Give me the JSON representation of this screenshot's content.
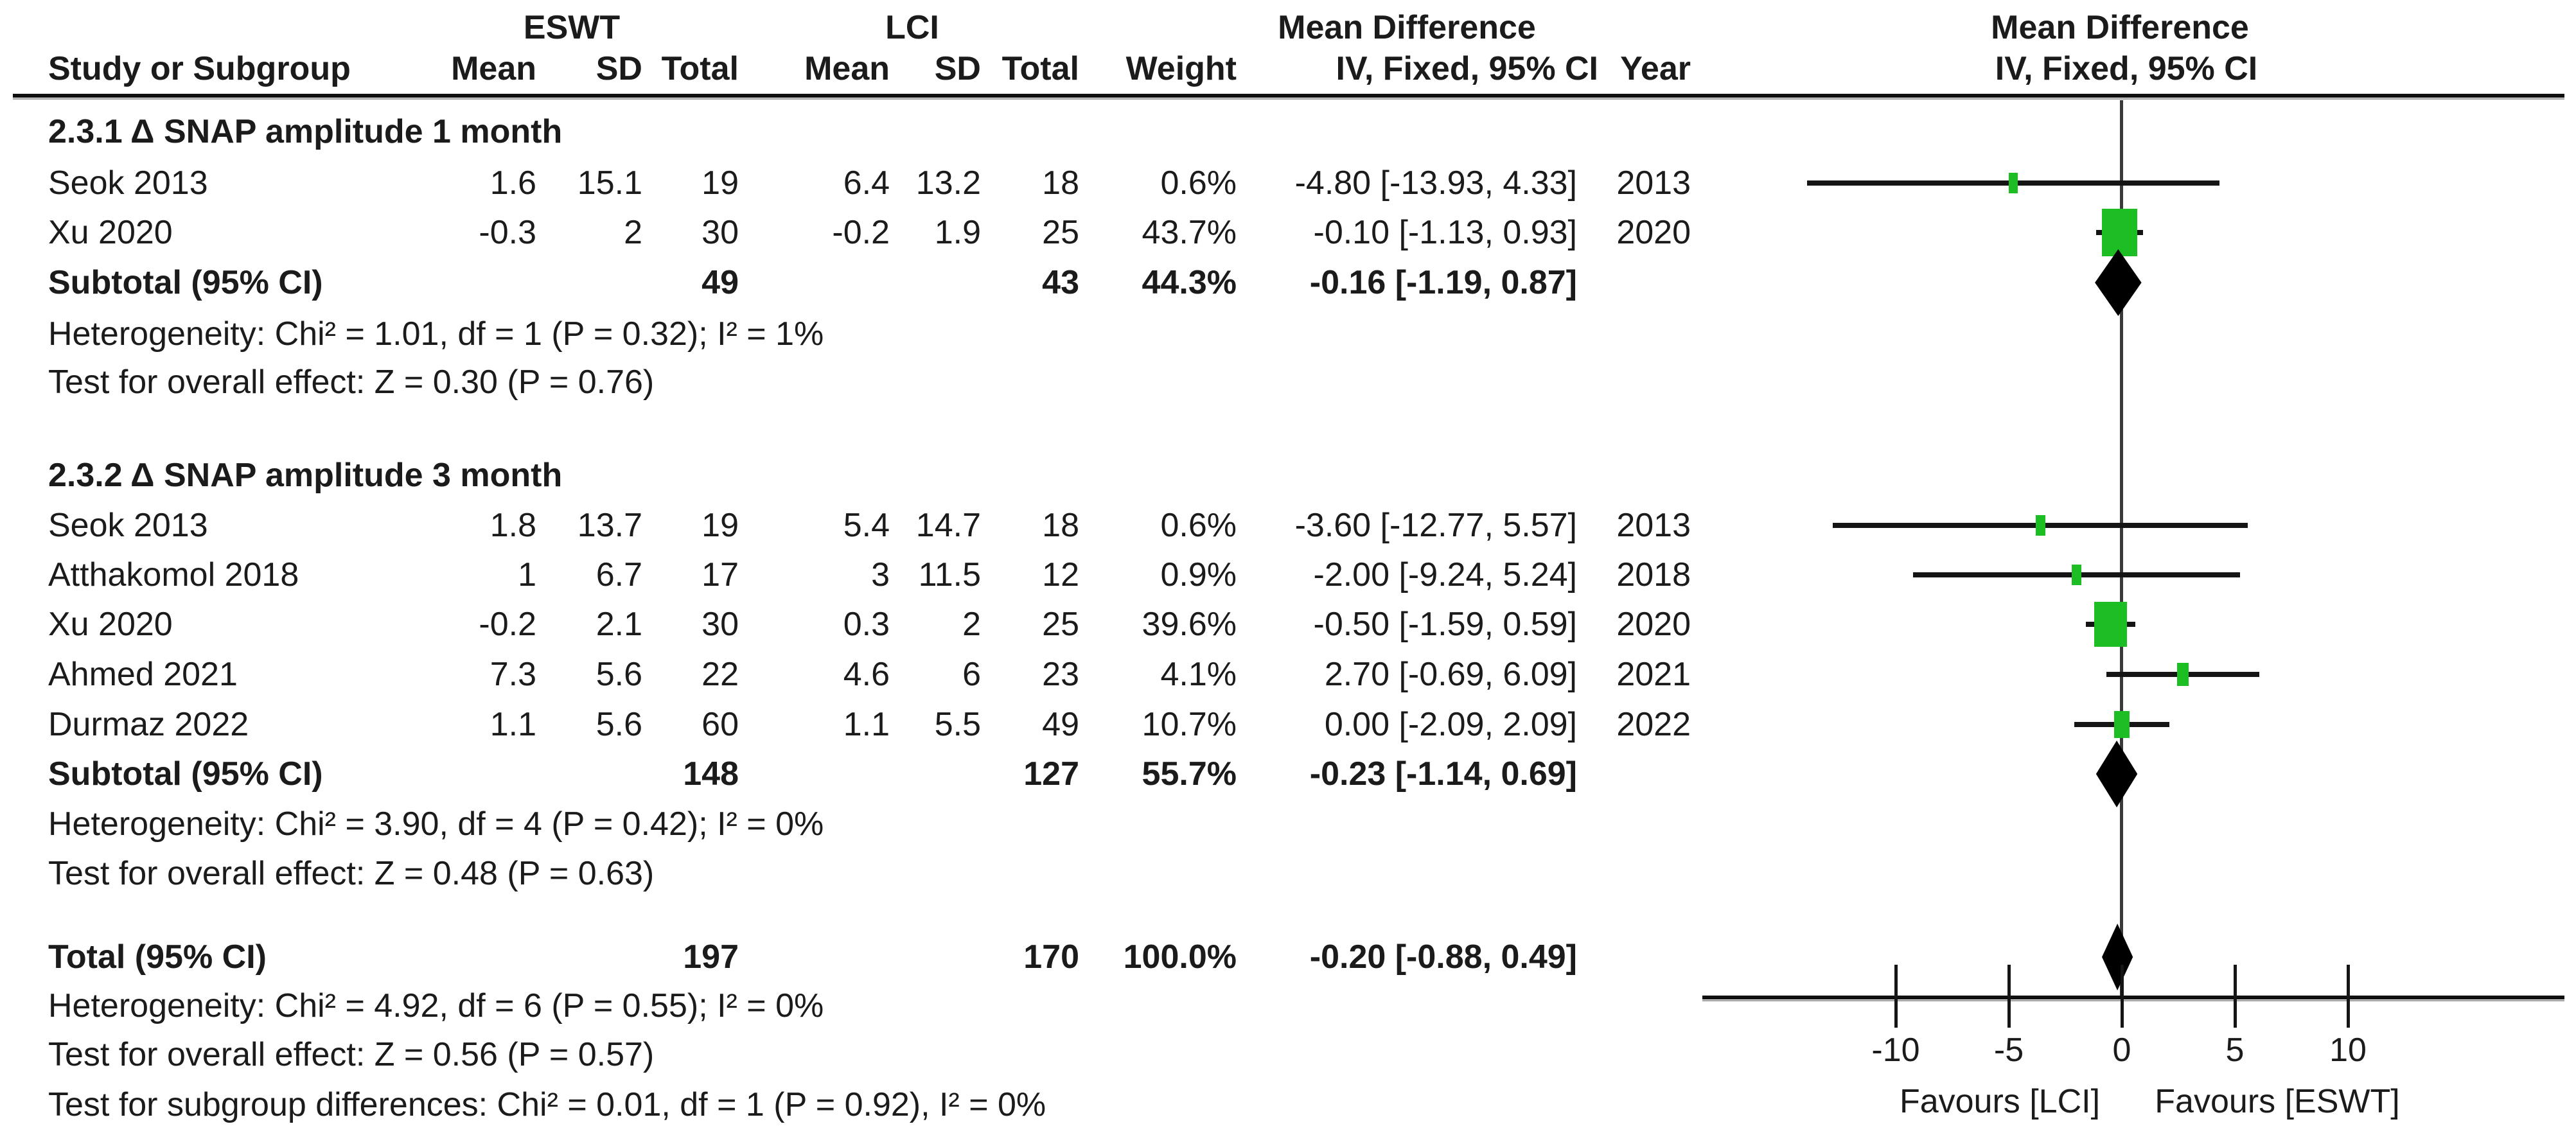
{
  "header": {
    "eswt": "ESWT",
    "lci": "LCI",
    "md_table": "Mean Difference",
    "md_plot": "Mean Difference",
    "col_study": "Study or Subgroup",
    "col_mean": "Mean",
    "col_sd": "SD",
    "col_total": "Total",
    "col_weight": "Weight",
    "col_iv_table": "IV, Fixed, 95% CI",
    "col_year": "Year",
    "col_iv_plot": "IV, Fixed, 95% CI"
  },
  "groups": [
    {
      "heading": "2.3.1 Δ SNAP amplitude 1 month",
      "studies": [
        {
          "label": "Seok 2013",
          "mean1": "1.6",
          "sd1": "15.1",
          "total1": "19",
          "mean2": "6.4",
          "sd2": "13.2",
          "total2": "18",
          "weight": "0.6%",
          "ci_text": "-4.80 [-13.93, 4.33]",
          "year": "2013",
          "est": -4.8,
          "lo": -13.93,
          "hi": 4.33,
          "weight_pct": 0.6
        },
        {
          "label": "Xu 2020",
          "mean1": "-0.3",
          "sd1": "2",
          "total1": "30",
          "mean2": "-0.2",
          "sd2": "1.9",
          "total2": "25",
          "weight": "43.7%",
          "ci_text": "-0.10 [-1.13, 0.93]",
          "year": "2020",
          "est": -0.1,
          "lo": -1.13,
          "hi": 0.93,
          "weight_pct": 43.7
        }
      ],
      "subtotal": {
        "label": "Subtotal (95% CI)",
        "total1": "49",
        "total2": "43",
        "weight": "44.3%",
        "ci_text": "-0.16 [-1.19, 0.87]",
        "est": -0.16,
        "lo": -1.19,
        "hi": 0.87
      },
      "heterogeneity": "Heterogeneity: Chi² = 1.01, df = 1 (P = 0.32); I² = 1%",
      "overall_effect": "Test for overall effect: Z = 0.30 (P = 0.76)"
    },
    {
      "heading": "2.3.2 Δ SNAP amplitude 3 month",
      "studies": [
        {
          "label": "Seok 2013",
          "mean1": "1.8",
          "sd1": "13.7",
          "total1": "19",
          "mean2": "5.4",
          "sd2": "14.7",
          "total2": "18",
          "weight": "0.6%",
          "ci_text": "-3.60 [-12.77, 5.57]",
          "year": "2013",
          "est": -3.6,
          "lo": -12.77,
          "hi": 5.57,
          "weight_pct": 0.6
        },
        {
          "label": "Atthakomol 2018",
          "mean1": "1",
          "sd1": "6.7",
          "total1": "17",
          "mean2": "3",
          "sd2": "11.5",
          "total2": "12",
          "weight": "0.9%",
          "ci_text": "-2.00 [-9.24, 5.24]",
          "year": "2018",
          "est": -2.0,
          "lo": -9.24,
          "hi": 5.24,
          "weight_pct": 0.9
        },
        {
          "label": "Xu 2020",
          "mean1": "-0.2",
          "sd1": "2.1",
          "total1": "30",
          "mean2": "0.3",
          "sd2": "2",
          "total2": "25",
          "weight": "39.6%",
          "ci_text": "-0.50 [-1.59, 0.59]",
          "year": "2020",
          "est": -0.5,
          "lo": -1.59,
          "hi": 0.59,
          "weight_pct": 39.6
        },
        {
          "label": "Ahmed 2021",
          "mean1": "7.3",
          "sd1": "5.6",
          "total1": "22",
          "mean2": "4.6",
          "sd2": "6",
          "total2": "23",
          "weight": "4.1%",
          "ci_text": "2.70 [-0.69, 6.09]",
          "year": "2021",
          "est": 2.7,
          "lo": -0.69,
          "hi": 6.09,
          "weight_pct": 4.1
        },
        {
          "label": "Durmaz 2022",
          "mean1": "1.1",
          "sd1": "5.6",
          "total1": "60",
          "mean2": "1.1",
          "sd2": "5.5",
          "total2": "49",
          "weight": "10.7%",
          "ci_text": "0.00 [-2.09, 2.09]",
          "year": "2022",
          "est": 0.0,
          "lo": -2.09,
          "hi": 2.09,
          "weight_pct": 10.7
        }
      ],
      "subtotal": {
        "label": "Subtotal (95% CI)",
        "total1": "148",
        "total2": "127",
        "weight": "55.7%",
        "ci_text": "-0.23 [-1.14, 0.69]",
        "est": -0.23,
        "lo": -1.14,
        "hi": 0.69
      },
      "heterogeneity": "Heterogeneity: Chi² = 3.90, df = 4 (P = 0.42); I² = 0%",
      "overall_effect": "Test for overall effect: Z = 0.48 (P = 0.63)"
    }
  ],
  "total": {
    "label": "Total (95% CI)",
    "total1": "197",
    "total2": "170",
    "weight": "100.0%",
    "ci_text": "-0.20 [-0.88, 0.49]",
    "est": -0.2,
    "lo": -0.88,
    "hi": 0.49
  },
  "footer": {
    "heterogeneity": "Heterogeneity: Chi² = 4.92, df = 6 (P = 0.55); I² = 0%",
    "overall_effect": "Test for overall effect: Z = 0.56 (P = 0.57)",
    "subgroup_diff": "Test for subgroup differences: Chi² = 0.01, df = 1 (P = 0.92), I² = 0%"
  },
  "axis": {
    "ticks": [
      -10,
      -5,
      0,
      5,
      10
    ],
    "favours_left": "Favours [LCI]",
    "favours_right": "Favours [ESWT]"
  },
  "colors": {
    "square": "#1CBE23",
    "diamond": "#000000",
    "line": "#151515"
  },
  "chart_data": {
    "type": "scatter",
    "subtype": "forest-plot",
    "effect_measure": "Mean Difference",
    "model": "IV, Fixed, 95% CI",
    "xlabel_left": "Favours [LCI]",
    "xlabel_right": "Favours [ESWT]",
    "x_ticks": [
      -10,
      -5,
      0,
      5,
      10
    ],
    "xlim": [
      -18.5,
      19.5
    ],
    "groups": [
      {
        "name": "2.3.1 Δ SNAP amplitude 1 month",
        "studies": [
          {
            "study": "Seok 2013",
            "year": 2013,
            "eswt": {
              "mean": 1.6,
              "sd": 15.1,
              "n": 19
            },
            "lci": {
              "mean": 6.4,
              "sd": 13.2,
              "n": 18
            },
            "weight_pct": 0.6,
            "md": -4.8,
            "ci95": [
              -13.93,
              4.33
            ]
          },
          {
            "study": "Xu 2020",
            "year": 2020,
            "eswt": {
              "mean": -0.3,
              "sd": 2,
              "n": 30
            },
            "lci": {
              "mean": -0.2,
              "sd": 1.9,
              "n": 25
            },
            "weight_pct": 43.7,
            "md": -0.1,
            "ci95": [
              -1.13,
              0.93
            ]
          }
        ],
        "subtotal": {
          "n_eswt": 49,
          "n_lci": 43,
          "weight_pct": 44.3,
          "md": -0.16,
          "ci95": [
            -1.19,
            0.87
          ]
        },
        "heterogeneity": {
          "chi2": 1.01,
          "df": 1,
          "p": 0.32,
          "i2_pct": 1
        },
        "overall_effect": {
          "z": 0.3,
          "p": 0.76
        }
      },
      {
        "name": "2.3.2 Δ SNAP amplitude 3 month",
        "studies": [
          {
            "study": "Seok 2013",
            "year": 2013,
            "eswt": {
              "mean": 1.8,
              "sd": 13.7,
              "n": 19
            },
            "lci": {
              "mean": 5.4,
              "sd": 14.7,
              "n": 18
            },
            "weight_pct": 0.6,
            "md": -3.6,
            "ci95": [
              -12.77,
              5.57
            ]
          },
          {
            "study": "Atthakomol 2018",
            "year": 2018,
            "eswt": {
              "mean": 1,
              "sd": 6.7,
              "n": 17
            },
            "lci": {
              "mean": 3,
              "sd": 11.5,
              "n": 12
            },
            "weight_pct": 0.9,
            "md": -2.0,
            "ci95": [
              -9.24,
              5.24
            ]
          },
          {
            "study": "Xu 2020",
            "year": 2020,
            "eswt": {
              "mean": -0.2,
              "sd": 2.1,
              "n": 30
            },
            "lci": {
              "mean": 0.3,
              "sd": 2,
              "n": 25
            },
            "weight_pct": 39.6,
            "md": -0.5,
            "ci95": [
              -1.59,
              0.59
            ]
          },
          {
            "study": "Ahmed 2021",
            "year": 2021,
            "eswt": {
              "mean": 7.3,
              "sd": 5.6,
              "n": 22
            },
            "lci": {
              "mean": 4.6,
              "sd": 6,
              "n": 23
            },
            "weight_pct": 4.1,
            "md": 2.7,
            "ci95": [
              -0.69,
              6.09
            ]
          },
          {
            "study": "Durmaz 2022",
            "year": 2022,
            "eswt": {
              "mean": 1.1,
              "sd": 5.6,
              "n": 60
            },
            "lci": {
              "mean": 1.1,
              "sd": 5.5,
              "n": 49
            },
            "weight_pct": 10.7,
            "md": 0.0,
            "ci95": [
              -2.09,
              2.09
            ]
          }
        ],
        "subtotal": {
          "n_eswt": 148,
          "n_lci": 127,
          "weight_pct": 55.7,
          "md": -0.23,
          "ci95": [
            -1.14,
            0.69
          ]
        },
        "heterogeneity": {
          "chi2": 3.9,
          "df": 4,
          "p": 0.42,
          "i2_pct": 0
        },
        "overall_effect": {
          "z": 0.48,
          "p": 0.63
        }
      }
    ],
    "total": {
      "n_eswt": 197,
      "n_lci": 170,
      "weight_pct": 100.0,
      "md": -0.2,
      "ci95": [
        -0.88,
        0.49
      ]
    },
    "total_heterogeneity": {
      "chi2": 4.92,
      "df": 6,
      "p": 0.55,
      "i2_pct": 0
    },
    "total_overall_effect": {
      "z": 0.56,
      "p": 0.57
    },
    "subgroup_differences": {
      "chi2": 0.01,
      "df": 1,
      "p": 0.92,
      "i2_pct": 0
    }
  }
}
